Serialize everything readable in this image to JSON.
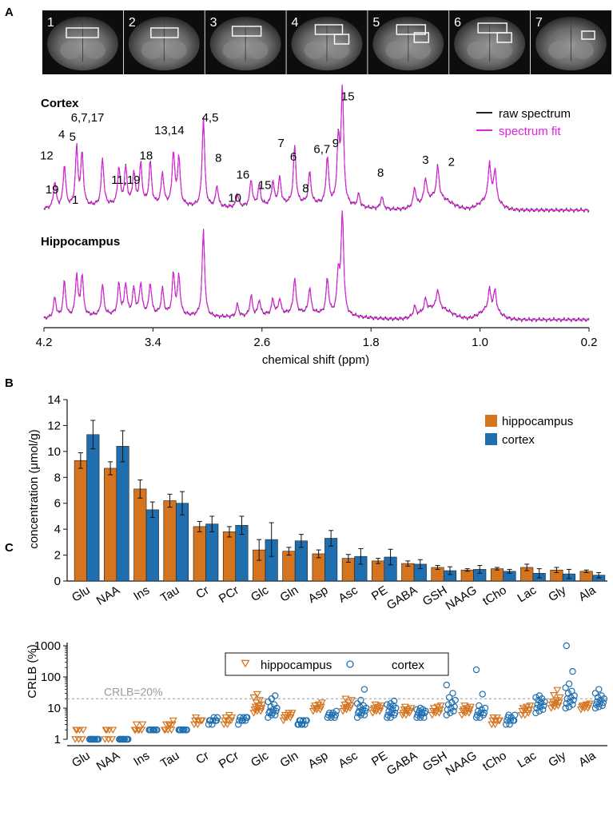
{
  "panels": {
    "a": "A",
    "b": "B",
    "c": "C"
  },
  "colors": {
    "hippocampus": "#d4741f",
    "cortex": "#1f6fb0",
    "fit": "#e020e0",
    "raw": "#222222",
    "ref_line": "#999999",
    "mri_bg": "#0d0d0d"
  },
  "mri_slices": [
    "1",
    "2",
    "3",
    "4",
    "5",
    "6",
    "7"
  ],
  "chart_data": [
    {
      "type": "line",
      "panel": "A",
      "xlabel": "chemical shift (ppm)",
      "xlim": [
        4.2,
        0.2
      ],
      "x_ticks": [
        "4.2",
        "3.4",
        "2.6",
        "1.8",
        "1.0",
        "0.2"
      ],
      "x_tick_values": [
        4.2,
        3.4,
        2.6,
        1.8,
        1.0,
        0.2
      ],
      "legend": [
        "raw spectrum",
        "spectrum fit"
      ],
      "spectra": [
        {
          "name": "Cortex",
          "peaks": [
            [
              4.12,
              0.25
            ],
            [
              4.05,
              0.4
            ],
            [
              3.96,
              0.55
            ],
            [
              3.92,
              0.5
            ],
            [
              3.77,
              0.45
            ],
            [
              3.65,
              0.35
            ],
            [
              3.6,
              0.35
            ],
            [
              3.54,
              0.3
            ],
            [
              3.49,
              0.38
            ],
            [
              3.42,
              0.4
            ],
            [
              3.33,
              0.3
            ],
            [
              3.25,
              0.5
            ],
            [
              3.21,
              0.45
            ],
            [
              3.03,
              0.85
            ],
            [
              2.93,
              0.2
            ],
            [
              2.78,
              0.12
            ],
            [
              2.68,
              0.25
            ],
            [
              2.62,
              0.2
            ],
            [
              2.52,
              0.22
            ],
            [
              2.47,
              0.25
            ],
            [
              2.36,
              0.55
            ],
            [
              2.25,
              0.3
            ],
            [
              2.12,
              0.45
            ],
            [
              2.04,
              0.6
            ],
            [
              2.01,
              1.1
            ],
            [
              1.89,
              0.12
            ],
            [
              1.72,
              0.12
            ],
            [
              1.48,
              0.18
            ],
            [
              1.4,
              0.22
            ],
            [
              1.31,
              0.3
            ],
            [
              0.93,
              0.35
            ],
            [
              0.89,
              0.3
            ]
          ],
          "labels": [
            {
              "t": "12",
              "x": 4.18,
              "h": 0.48
            },
            {
              "t": "4",
              "x": 4.07,
              "h": 0.68
            },
            {
              "t": "5",
              "x": 3.99,
              "h": 0.66
            },
            {
              "t": "6,7,17",
              "x": 3.88,
              "h": 0.84
            },
            {
              "t": "1",
              "x": 3.97,
              "h": 0.06
            },
            {
              "t": "19",
              "x": 4.14,
              "h": 0.16
            },
            {
              "t": "11,19",
              "x": 3.6,
              "h": 0.25
            },
            {
              "t": "18",
              "x": 3.45,
              "h": 0.48
            },
            {
              "t": "13,14",
              "x": 3.28,
              "h": 0.72
            },
            {
              "t": "4,5",
              "x": 2.98,
              "h": 0.84
            },
            {
              "t": "8",
              "x": 2.92,
              "h": 0.46
            },
            {
              "t": "16",
              "x": 2.74,
              "h": 0.3
            },
            {
              "t": "10",
              "x": 2.8,
              "h": 0.08
            },
            {
              "t": "15",
              "x": 2.58,
              "h": 0.2
            },
            {
              "t": "7",
              "x": 2.46,
              "h": 0.6
            },
            {
              "t": "6",
              "x": 2.37,
              "h": 0.47
            },
            {
              "t": "8",
              "x": 2.28,
              "h": 0.17
            },
            {
              "t": "6,7",
              "x": 2.16,
              "h": 0.54
            },
            {
              "t": "9",
              "x": 2.06,
              "h": 0.6
            },
            {
              "t": "15",
              "x": 1.97,
              "h": 1.04
            },
            {
              "t": "8",
              "x": 1.73,
              "h": 0.32
            },
            {
              "t": "3",
              "x": 1.4,
              "h": 0.44
            },
            {
              "t": "2",
              "x": 1.21,
              "h": 0.42
            }
          ]
        },
        {
          "name": "Hippocampus",
          "peaks": [
            [
              4.12,
              0.2
            ],
            [
              4.05,
              0.35
            ],
            [
              3.96,
              0.4
            ],
            [
              3.92,
              0.4
            ],
            [
              3.77,
              0.3
            ],
            [
              3.65,
              0.3
            ],
            [
              3.6,
              0.3
            ],
            [
              3.54,
              0.25
            ],
            [
              3.49,
              0.3
            ],
            [
              3.42,
              0.3
            ],
            [
              3.33,
              0.25
            ],
            [
              3.25,
              0.4
            ],
            [
              3.21,
              0.38
            ],
            [
              3.03,
              0.85
            ],
            [
              2.78,
              0.12
            ],
            [
              2.68,
              0.2
            ],
            [
              2.62,
              0.15
            ],
            [
              2.52,
              0.15
            ],
            [
              2.47,
              0.15
            ],
            [
              2.36,
              0.35
            ],
            [
              2.25,
              0.25
            ],
            [
              2.12,
              0.35
            ],
            [
              2.04,
              0.4
            ],
            [
              2.01,
              1.0
            ],
            [
              1.48,
              0.1
            ],
            [
              1.4,
              0.12
            ],
            [
              1.31,
              0.18
            ],
            [
              0.93,
              0.2
            ],
            [
              0.89,
              0.2
            ]
          ]
        }
      ]
    },
    {
      "type": "bar",
      "panel": "B",
      "ylabel": "concentration (μmol/g)",
      "ylim": [
        0,
        14
      ],
      "y_ticks": [
        "0",
        "2",
        "4",
        "6",
        "8",
        "10",
        "12",
        "14"
      ],
      "categories": [
        "Glu",
        "NAA",
        "Ins",
        "Tau",
        "Cr",
        "PCr",
        "Glc",
        "Gln",
        "Asp",
        "Asc",
        "PE",
        "GABA",
        "GSH",
        "NAAG",
        "tCho",
        "Lac",
        "Gly",
        "Ala"
      ],
      "series": [
        {
          "name": "hippocampus",
          "values": [
            9.3,
            8.7,
            7.1,
            6.2,
            4.2,
            3.8,
            2.4,
            2.3,
            2.1,
            1.75,
            1.55,
            1.35,
            1.05,
            0.85,
            0.95,
            1.05,
            0.85,
            0.75
          ],
          "errors": [
            0.6,
            0.5,
            0.7,
            0.5,
            0.4,
            0.4,
            0.8,
            0.3,
            0.3,
            0.3,
            0.2,
            0.2,
            0.15,
            0.1,
            0.1,
            0.25,
            0.2,
            0.1
          ]
        },
        {
          "name": "cortex",
          "values": [
            11.3,
            10.4,
            5.5,
            6.0,
            4.4,
            4.3,
            3.2,
            3.1,
            3.3,
            1.9,
            1.85,
            1.3,
            0.8,
            0.9,
            0.75,
            0.6,
            0.55,
            0.45
          ],
          "errors": [
            1.1,
            1.2,
            0.6,
            0.9,
            0.6,
            0.7,
            1.3,
            0.5,
            0.6,
            0.6,
            0.6,
            0.35,
            0.3,
            0.3,
            0.15,
            0.35,
            0.35,
            0.2
          ]
        }
      ]
    },
    {
      "type": "scatter",
      "panel": "C",
      "ylabel": "CRLB (%)",
      "yscale": "log",
      "ylim": [
        1,
        1000
      ],
      "y_ticks": [
        "1",
        "10",
        "100",
        "1000"
      ],
      "y_tick_values": [
        1,
        10,
        100,
        1000
      ],
      "reference_line": {
        "label": "CRLB=20%",
        "value": 20
      },
      "categories": [
        "Glu",
        "NAA",
        "Ins",
        "Tau",
        "Cr",
        "PCr",
        "Glc",
        "Gln",
        "Asp",
        "Asc",
        "PE",
        "GABA",
        "GSH",
        "NAAG",
        "tCho",
        "Lac",
        "Gly",
        "Ala"
      ],
      "series": [
        {
          "name": "hippocampus",
          "marker": "triangle-down",
          "values": [
            [
              1,
              1,
              1,
              2,
              2,
              2,
              2
            ],
            [
              1,
              1,
              1,
              2,
              2,
              2,
              2
            ],
            [
              2,
              2,
              2,
              2,
              2,
              3,
              3
            ],
            [
              2,
              2,
              2,
              2,
              3,
              3,
              3,
              3,
              4
            ],
            [
              3,
              3,
              4,
              4,
              4,
              4,
              5
            ],
            [
              3,
              3,
              4,
              4,
              4,
              5,
              5,
              6
            ],
            [
              7,
              8,
              8,
              9,
              10,
              10,
              11,
              12,
              13,
              15,
              18,
              22,
              28
            ],
            [
              4,
              5,
              5,
              5,
              6,
              6,
              6,
              7,
              7
            ],
            [
              8,
              9,
              9,
              10,
              10,
              11,
              12,
              13,
              15
            ],
            [
              8,
              9,
              10,
              10,
              11,
              12,
              13,
              15,
              18,
              20
            ],
            [
              7,
              8,
              8,
              9,
              9,
              10,
              10,
              11,
              12,
              13
            ],
            [
              6,
              6,
              7,
              7,
              8,
              8,
              9,
              9,
              10,
              11
            ],
            [
              6,
              7,
              7,
              8,
              8,
              9,
              10,
              11,
              12
            ],
            [
              6,
              7,
              7,
              8,
              8,
              9,
              9,
              10,
              11,
              12
            ],
            [
              3,
              3,
              4,
              4,
              4,
              4,
              5,
              5
            ],
            [
              6,
              6,
              7,
              8,
              9,
              9,
              10,
              11,
              12
            ],
            [
              10,
              11,
              12,
              13,
              14,
              15,
              16,
              18,
              22,
              26,
              38
            ],
            [
              9,
              10,
              10,
              11,
              11,
              12,
              12,
              13,
              14
            ]
          ]
        },
        {
          "name": "cortex",
          "marker": "circle",
          "values": [
            [
              1,
              1,
              1,
              1,
              1,
              1,
              1,
              1,
              1,
              1
            ],
            [
              1,
              1,
              1,
              1,
              1,
              1,
              1,
              1,
              1,
              1
            ],
            [
              2,
              2,
              2,
              2,
              2,
              2,
              2,
              2
            ],
            [
              2,
              2,
              2,
              2,
              2,
              2,
              2,
              2
            ],
            [
              3,
              3,
              4,
              4,
              4,
              4,
              4,
              5,
              5
            ],
            [
              3,
              4,
              4,
              4,
              4,
              5,
              5,
              5,
              5
            ],
            [
              5,
              6,
              6,
              7,
              7,
              8,
              8,
              9,
              10,
              11,
              13,
              16,
              20,
              25
            ],
            [
              3,
              3,
              3,
              3,
              3,
              4,
              4,
              4,
              4,
              4
            ],
            [
              5,
              5,
              5,
              6,
              6,
              6,
              7,
              7,
              8
            ],
            [
              5,
              6,
              6,
              7,
              7,
              8,
              8,
              9,
              10,
              11,
              12,
              14,
              18,
              40
            ],
            [
              5,
              5,
              6,
              6,
              7,
              7,
              8,
              9,
              10,
              11,
              12,
              13,
              14,
              17
            ],
            [
              5,
              5,
              5,
              6,
              6,
              7,
              7,
              7,
              8,
              8,
              9,
              9,
              10
            ],
            [
              6,
              7,
              8,
              9,
              10,
              11,
              13,
              15,
              18,
              22,
              30,
              55
            ],
            [
              5,
              5,
              6,
              6,
              7,
              7,
              8,
              9,
              10,
              12,
              28,
              170
            ],
            [
              3,
              3,
              4,
              4,
              4,
              4,
              5,
              5,
              6,
              6
            ],
            [
              7,
              8,
              9,
              10,
              11,
              12,
              13,
              15,
              16,
              18,
              20,
              22,
              25
            ],
            [
              10,
              11,
              13,
              14,
              16,
              18,
              20,
              22,
              25,
              30,
              35,
              45,
              60,
              150,
              1000
            ],
            [
              10,
              11,
              12,
              13,
              14,
              15,
              16,
              18,
              20,
              22,
              25,
              30,
              40
            ]
          ]
        }
      ]
    }
  ]
}
